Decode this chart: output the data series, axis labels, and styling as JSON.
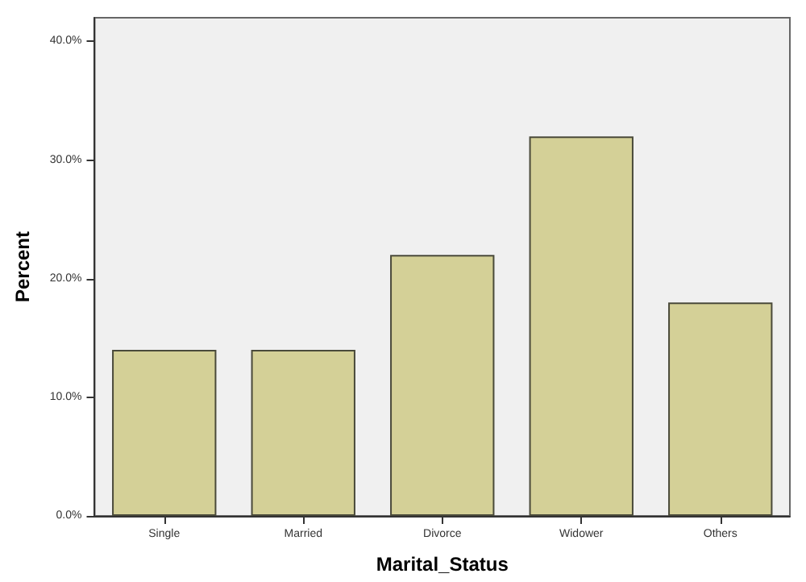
{
  "chart_data": {
    "type": "bar",
    "xlabel": "Marital_Status",
    "ylabel": "Percent",
    "categories": [
      "Single",
      "Married",
      "Divorce",
      "Widower",
      "Others"
    ],
    "values": [
      14,
      14,
      22,
      32,
      18
    ],
    "color": "#d4d097",
    "ylim": [
      0,
      42
    ],
    "yticks": [
      {
        "value": 0,
        "label": "0.0%"
      },
      {
        "value": 10,
        "label": "10.0%"
      },
      {
        "value": 20,
        "label": "20.0%"
      },
      {
        "value": 30,
        "label": "30.0%"
      },
      {
        "value": 40,
        "label": "40.0%"
      }
    ],
    "grid": false
  }
}
